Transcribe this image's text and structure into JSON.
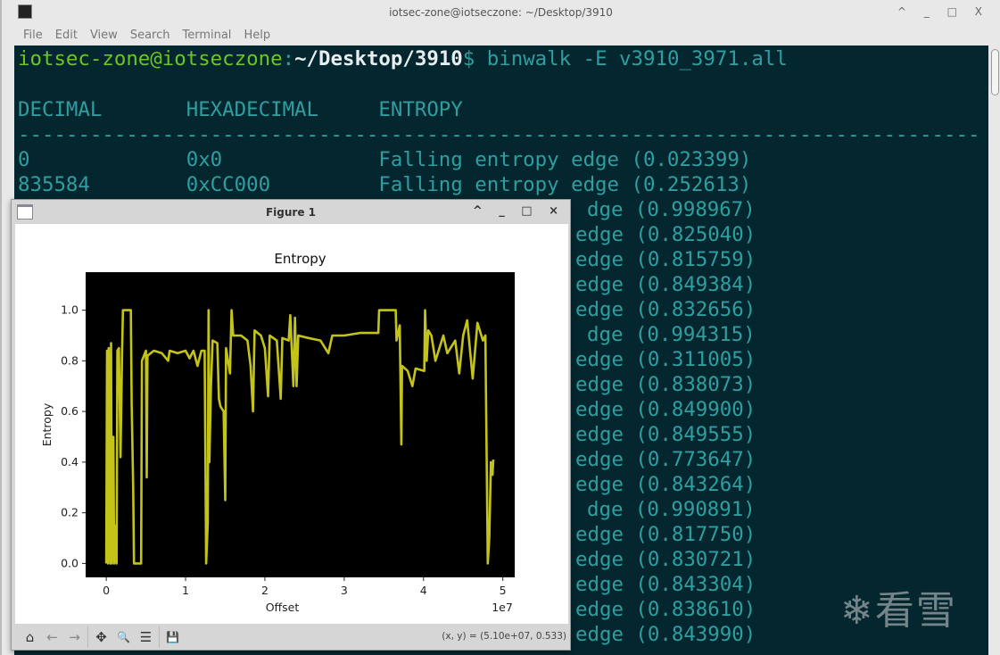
{
  "terminal": {
    "title": "iotsec-zone@iotseczone: ~/Desktop/3910",
    "window_controls": "^ _ □ X",
    "menu": [
      "File",
      "Edit",
      "View",
      "Search",
      "Terminal",
      "Help"
    ],
    "prompt_user": "iotsec-zone@iotseczone",
    "prompt_sep": ":",
    "prompt_path": "~/Desktop/3910",
    "prompt_dollar": "$",
    "command": " binwalk -E v3910_3971.all",
    "header": "DECIMAL       HEXADECIMAL     ENTROPY",
    "divider": "--------------------------------------------------------------------------------",
    "rows": [
      "0             0x0             Falling entropy edge (0.023399)",
      "835584        0xCC000         Falling entropy edge (0.252613)",
      "dge (0.998967)",
      "edge (0.825040)",
      "edge (0.815759)",
      "edge (0.849384)",
      "edge (0.832656)",
      "dge (0.994315)",
      "edge (0.311005)",
      "edge (0.838073)",
      "edge (0.849900)",
      "edge (0.849555)",
      "edge (0.773647)",
      "edge (0.843264)",
      "dge (0.990891)",
      "edge (0.817750)",
      "edge (0.830721)",
      "edge (0.843304)",
      "edge (0.838610)",
      "edge (0.843990)"
    ]
  },
  "figure": {
    "title": "Figure 1",
    "window_controls": "^ _ □ ×",
    "toolbar": [
      {
        "name": "home-icon",
        "glyph": "⌂"
      },
      {
        "name": "back-icon",
        "glyph": "←"
      },
      {
        "name": "forward-icon",
        "glyph": "→"
      },
      {
        "name": "pan-icon",
        "glyph": "✥"
      },
      {
        "name": "zoom-icon",
        "glyph": "🔍"
      },
      {
        "name": "configure-icon",
        "glyph": "☰"
      },
      {
        "name": "save-icon",
        "glyph": "💾"
      }
    ],
    "coords": "(x, y) = (5.10e+07, 0.533)"
  },
  "watermark": "❄看雪",
  "chart_data": {
    "type": "line",
    "title": "Entropy",
    "xlabel": "Offset",
    "ylabel": "Entropy",
    "x_scale_label": "1e7",
    "xlim": [
      -0.26,
      5.15
    ],
    "ylim": [
      -0.055,
      1.15
    ],
    "xticks": [
      "0",
      "1",
      "2",
      "3",
      "4",
      "5"
    ],
    "yticks": [
      "0.0",
      "0.2",
      "0.4",
      "0.6",
      "0.8",
      "1.0"
    ],
    "background": "#000000",
    "line_color": "#c3c31a",
    "grid": false,
    "x": [
      0.0,
      0.01,
      0.02,
      0.03,
      0.04,
      0.05,
      0.06,
      0.07,
      0.09,
      0.1,
      0.12,
      0.13,
      0.14,
      0.16,
      0.18,
      0.2,
      0.21,
      0.31,
      0.32,
      0.34,
      0.35,
      0.44,
      0.45,
      0.5,
      0.51,
      0.52,
      0.6,
      0.7,
      0.78,
      0.8,
      0.9,
      1.0,
      1.05,
      1.1,
      1.15,
      1.2,
      1.24,
      1.26,
      1.28,
      1.29,
      1.3,
      1.32,
      1.34,
      1.4,
      1.42,
      1.44,
      1.48,
      1.5,
      1.51,
      1.56,
      1.58,
      1.6,
      1.7,
      1.78,
      1.82,
      1.85,
      1.87,
      1.95,
      2.0,
      2.04,
      2.06,
      2.15,
      2.2,
      2.22,
      2.3,
      2.32,
      2.36,
      2.38,
      2.4,
      2.42,
      2.55,
      2.7,
      2.8,
      2.85,
      3.0,
      3.2,
      3.43,
      3.44,
      3.65,
      3.66,
      3.7,
      3.72,
      3.73,
      3.8,
      3.86,
      3.9,
      4.01,
      4.02,
      4.04,
      4.06,
      4.1,
      4.15,
      4.25,
      4.3,
      4.4,
      4.45,
      4.5,
      4.55,
      4.62,
      4.68,
      4.75,
      4.78,
      4.81,
      4.83,
      4.85,
      4.87,
      4.88
    ],
    "y": [
      0.0,
      0.84,
      0.0,
      0.85,
      0.16,
      0.0,
      0.87,
      0.0,
      0.5,
      0.0,
      0.15,
      0.0,
      0.84,
      0.85,
      0.42,
      0.84,
      1.0,
      1.0,
      0.63,
      0.3,
      0.0,
      0.0,
      0.8,
      0.84,
      0.34,
      0.82,
      0.84,
      0.83,
      0.8,
      0.84,
      0.83,
      0.84,
      0.81,
      0.84,
      0.78,
      0.84,
      0.84,
      0.0,
      0.16,
      1.0,
      0.4,
      0.7,
      0.88,
      0.87,
      0.65,
      0.62,
      0.6,
      0.25,
      0.85,
      0.75,
      1.0,
      0.9,
      0.9,
      0.88,
      0.78,
      0.6,
      0.92,
      0.9,
      0.85,
      0.66,
      0.9,
      0.88,
      0.65,
      0.89,
      0.88,
      0.98,
      0.7,
      0.97,
      0.7,
      0.9,
      0.89,
      0.88,
      0.83,
      0.9,
      0.9,
      0.91,
      0.91,
      1.0,
      1.0,
      0.88,
      0.94,
      0.47,
      0.78,
      0.76,
      0.7,
      0.77,
      0.76,
      1.0,
      0.8,
      0.92,
      0.9,
      0.8,
      0.9,
      0.83,
      0.88,
      0.75,
      0.9,
      0.96,
      0.73,
      0.95,
      0.88,
      0.9,
      0.0,
      0.1,
      0.4,
      0.35,
      0.41
    ]
  }
}
